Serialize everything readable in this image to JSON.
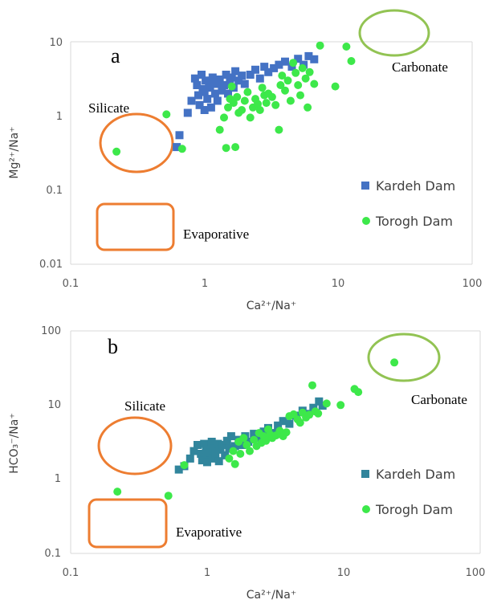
{
  "chart_data": [
    {
      "type": "scatter",
      "panel_letter": "a",
      "xscale": "log",
      "yscale": "log",
      "xlim": [
        0.1,
        100
      ],
      "ylim": [
        0.01,
        10
      ],
      "xticks": [
        "0.1",
        "1",
        "10",
        "100"
      ],
      "yticks": [
        "0.01",
        "0.1",
        "1",
        "10"
      ],
      "xlabel": "Ca²⁺/Na⁺",
      "ylabel": "Mg²⁺/Na⁺",
      "regions": [
        {
          "label": "Silicate",
          "shape": "ellipse",
          "color": "#ed7d31"
        },
        {
          "label": "Evaporative",
          "shape": "rounded-rect",
          "color": "#ed7d31"
        },
        {
          "label": "Carbonate",
          "shape": "ellipse",
          "color": "#92c353"
        }
      ],
      "legend_position": "right",
      "series": [
        {
          "name": "Kardeh Dam",
          "marker": "square",
          "color": "#4472c4",
          "points": [
            [
              0.65,
              0.55
            ],
            [
              0.62,
              0.38
            ],
            [
              0.75,
              1.1
            ],
            [
              0.8,
              1.6
            ],
            [
              0.85,
              3.2
            ],
            [
              0.88,
              2.6
            ],
            [
              0.9,
              1.9
            ],
            [
              0.92,
              1.4
            ],
            [
              0.95,
              3.6
            ],
            [
              0.97,
              2.3
            ],
            [
              1.0,
              2.1
            ],
            [
              1.0,
              1.2
            ],
            [
              1.02,
              3.0
            ],
            [
              1.05,
              1.7
            ],
            [
              1.08,
              2.8
            ],
            [
              1.1,
              2.4
            ],
            [
              1.12,
              1.3
            ],
            [
              1.15,
              3.3
            ],
            [
              1.2,
              2.0
            ],
            [
              1.22,
              2.7
            ],
            [
              1.25,
              1.6
            ],
            [
              1.3,
              3.1
            ],
            [
              1.35,
              2.2
            ],
            [
              1.4,
              2.6
            ],
            [
              1.45,
              3.6
            ],
            [
              1.5,
              2.0
            ],
            [
              1.55,
              2.9
            ],
            [
              1.6,
              3.3
            ],
            [
              1.65,
              2.4
            ],
            [
              1.7,
              4.0
            ],
            [
              1.8,
              3.0
            ],
            [
              1.9,
              3.5
            ],
            [
              2.0,
              2.7
            ],
            [
              2.2,
              3.6
            ],
            [
              2.4,
              4.2
            ],
            [
              2.6,
              3.2
            ],
            [
              2.8,
              4.6
            ],
            [
              3.0,
              3.9
            ],
            [
              3.3,
              4.4
            ],
            [
              3.6,
              4.9
            ],
            [
              4.0,
              5.4
            ],
            [
              4.5,
              4.6
            ],
            [
              5.0,
              5.9
            ],
            [
              5.5,
              4.9
            ],
            [
              6.0,
              6.4
            ],
            [
              6.6,
              5.8
            ]
          ]
        },
        {
          "name": "Torogh Dam",
          "marker": "circle",
          "color": "#3de84a",
          "points": [
            [
              0.22,
              0.33
            ],
            [
              0.52,
              1.05
            ],
            [
              0.68,
              0.36
            ],
            [
              1.3,
              0.65
            ],
            [
              1.4,
              0.95
            ],
            [
              1.45,
              0.37
            ],
            [
              1.5,
              1.3
            ],
            [
              1.55,
              1.7
            ],
            [
              1.6,
              2.5
            ],
            [
              1.65,
              1.5
            ],
            [
              1.7,
              0.38
            ],
            [
              1.75,
              1.8
            ],
            [
              1.8,
              1.1
            ],
            [
              1.9,
              1.2
            ],
            [
              2.0,
              1.6
            ],
            [
              2.1,
              2.1
            ],
            [
              2.2,
              0.95
            ],
            [
              2.3,
              1.3
            ],
            [
              2.4,
              1.7
            ],
            [
              2.5,
              1.45
            ],
            [
              2.6,
              1.2
            ],
            [
              2.7,
              2.4
            ],
            [
              2.8,
              1.9
            ],
            [
              2.9,
              1.5
            ],
            [
              3.0,
              2.0
            ],
            [
              3.2,
              1.8
            ],
            [
              3.4,
              1.4
            ],
            [
              3.6,
              0.65
            ],
            [
              3.7,
              2.6
            ],
            [
              3.8,
              3.5
            ],
            [
              4.0,
              2.2
            ],
            [
              4.2,
              3.0
            ],
            [
              4.4,
              1.6
            ],
            [
              4.6,
              5.2
            ],
            [
              4.8,
              3.8
            ],
            [
              5.0,
              2.6
            ],
            [
              5.2,
              1.9
            ],
            [
              5.4,
              4.4
            ],
            [
              5.7,
              3.2
            ],
            [
              5.9,
              1.3
            ],
            [
              6.1,
              3.9
            ],
            [
              6.6,
              2.7
            ],
            [
              7.3,
              8.9
            ],
            [
              9.5,
              2.5
            ],
            [
              11.5,
              8.6
            ],
            [
              12.5,
              5.5
            ]
          ]
        }
      ]
    },
    {
      "type": "scatter",
      "panel_letter": "b",
      "xscale": "log",
      "yscale": "log",
      "xlim": [
        0.1,
        100
      ],
      "ylim": [
        0.1,
        100
      ],
      "xticks": [
        "0.1",
        "1",
        "10",
        "100"
      ],
      "yticks": [
        "0.1",
        "1",
        "10",
        "100"
      ],
      "xlabel": "Ca²⁺/Na⁺",
      "ylabel": "HCO₃⁻/Na⁺",
      "regions": [
        {
          "label": "Silicate",
          "shape": "ellipse",
          "color": "#ed7d31"
        },
        {
          "label": "Evaporative",
          "shape": "rounded-rect",
          "color": "#ed7d31"
        },
        {
          "label": "Carbonate",
          "shape": "ellipse",
          "color": "#92c353"
        }
      ],
      "legend_position": "right",
      "series": [
        {
          "name": "Kardeh Dam",
          "marker": "square",
          "color": "#31859c",
          "points": [
            [
              0.62,
              1.35
            ],
            [
              0.68,
              1.5
            ],
            [
              0.75,
              1.9
            ],
            [
              0.8,
              2.4
            ],
            [
              0.85,
              2.9
            ],
            [
              0.9,
              2.2
            ],
            [
              0.92,
              1.8
            ],
            [
              0.95,
              3.0
            ],
            [
              0.98,
              2.5
            ],
            [
              1.0,
              2.1
            ],
            [
              1.0,
              1.7
            ],
            [
              1.02,
              2.8
            ],
            [
              1.05,
              2.3
            ],
            [
              1.08,
              3.2
            ],
            [
              1.1,
              1.9
            ],
            [
              1.12,
              2.6
            ],
            [
              1.15,
              2.2
            ],
            [
              1.2,
              3.0
            ],
            [
              1.22,
              1.75
            ],
            [
              1.25,
              2.5
            ],
            [
              1.3,
              2.9
            ],
            [
              1.35,
              2.1
            ],
            [
              1.4,
              3.3
            ],
            [
              1.45,
              2.6
            ],
            [
              1.5,
              3.8
            ],
            [
              1.6,
              2.8
            ],
            [
              1.7,
              3.4
            ],
            [
              1.8,
              2.9
            ],
            [
              1.9,
              3.8
            ],
            [
              2.0,
              3.2
            ],
            [
              2.2,
              4.1
            ],
            [
              2.4,
              3.6
            ],
            [
              2.6,
              4.4
            ],
            [
              2.8,
              4.9
            ],
            [
              3.0,
              4.2
            ],
            [
              3.3,
              5.3
            ],
            [
              3.6,
              6.1
            ],
            [
              4.0,
              5.6
            ],
            [
              4.5,
              7.2
            ],
            [
              5.0,
              8.4
            ],
            [
              5.5,
              7.6
            ],
            [
              6.0,
              9.2
            ],
            [
              6.6,
              11.2
            ],
            [
              7.0,
              9.8
            ]
          ]
        },
        {
          "name": "Torogh Dam",
          "marker": "circle",
          "color": "#3de84a",
          "points": [
            [
              0.22,
              0.68
            ],
            [
              0.52,
              0.6
            ],
            [
              0.68,
              1.55
            ],
            [
              1.45,
              1.9
            ],
            [
              1.55,
              2.4
            ],
            [
              1.6,
              1.6
            ],
            [
              1.7,
              3.2
            ],
            [
              1.75,
              2.2
            ],
            [
              1.85,
              3.6
            ],
            [
              1.95,
              2.9
            ],
            [
              2.05,
              2.4
            ],
            [
              2.2,
              3.4
            ],
            [
              2.3,
              2.8
            ],
            [
              2.4,
              4.2
            ],
            [
              2.5,
              3.1
            ],
            [
              2.6,
              3.8
            ],
            [
              2.7,
              3.3
            ],
            [
              2.8,
              4.7
            ],
            [
              2.9,
              4.0
            ],
            [
              3.0,
              3.6
            ],
            [
              3.2,
              3.9
            ],
            [
              3.4,
              4.5
            ],
            [
              3.6,
              3.8
            ],
            [
              3.8,
              4.3
            ],
            [
              4.0,
              7.1
            ],
            [
              4.3,
              7.5
            ],
            [
              4.6,
              6.4
            ],
            [
              4.8,
              5.8
            ],
            [
              5.0,
              7.9
            ],
            [
              5.3,
              6.8
            ],
            [
              5.6,
              7.4
            ],
            [
              5.9,
              18.5
            ],
            [
              6.2,
              8.2
            ],
            [
              6.5,
              7.7
            ],
            [
              7.5,
              10.5
            ],
            [
              9.5,
              10.0
            ],
            [
              12.0,
              16.5
            ],
            [
              12.8,
              15.0
            ],
            [
              23.5,
              37.5
            ]
          ]
        }
      ]
    }
  ]
}
